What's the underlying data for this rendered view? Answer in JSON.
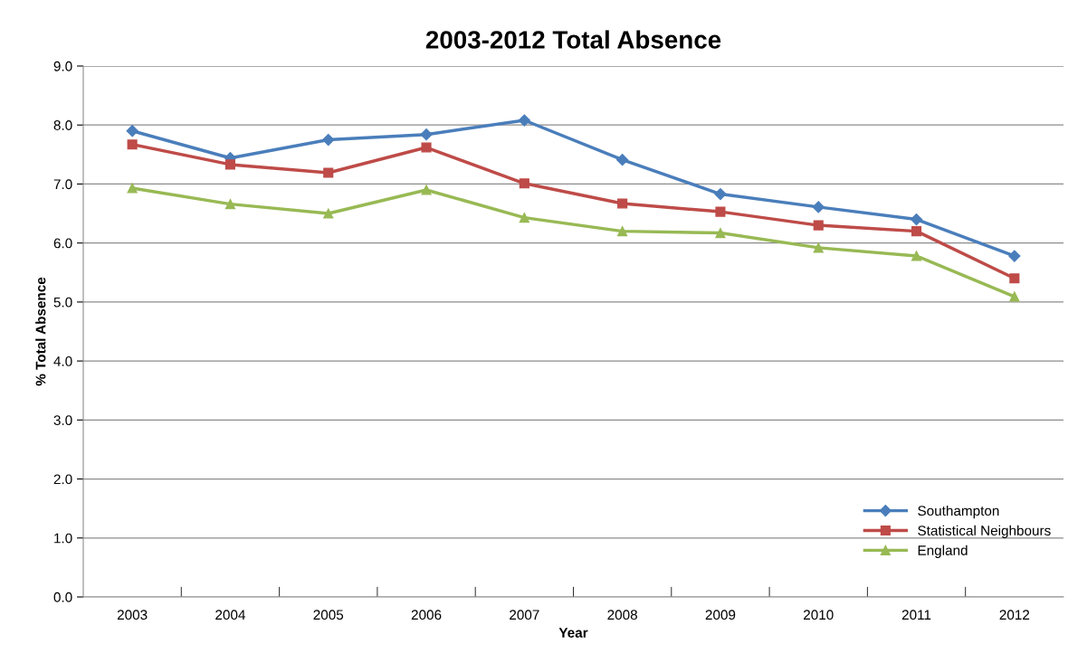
{
  "chart_data": {
    "type": "line",
    "title": "2003-2012 Total Absence",
    "xlabel": "Year",
    "ylabel": "% Total Absence",
    "categories": [
      "2003",
      "2004",
      "2005",
      "2006",
      "2007",
      "2008",
      "2009",
      "2010",
      "2011",
      "2012"
    ],
    "series": [
      {
        "name": "Southampton",
        "color": "#4a7ebb",
        "marker": "diamond",
        "values": [
          7.9,
          7.44,
          7.75,
          7.84,
          8.08,
          7.41,
          6.83,
          6.61,
          6.4,
          5.78
        ]
      },
      {
        "name": "Statistical Neighbours",
        "color": "#be4b48",
        "marker": "square",
        "values": [
          7.67,
          7.33,
          7.19,
          7.62,
          7.01,
          6.67,
          6.53,
          6.3,
          6.2,
          5.4
        ]
      },
      {
        "name": "England",
        "color": "#98b954",
        "marker": "triangle",
        "values": [
          6.93,
          6.66,
          6.5,
          6.9,
          6.43,
          6.2,
          6.17,
          5.92,
          5.78,
          5.09
        ]
      }
    ],
    "ylim": [
      0,
      9
    ],
    "yticks": [
      {
        "value": 0,
        "label": "0.0"
      },
      {
        "value": 1,
        "label": "1.0"
      },
      {
        "value": 2,
        "label": "2.0"
      },
      {
        "value": 3,
        "label": "3.0"
      },
      {
        "value": 4,
        "label": "4.0"
      },
      {
        "value": 5,
        "label": "5.0"
      },
      {
        "value": 6,
        "label": "6.0"
      },
      {
        "value": 7,
        "label": "7.0"
      },
      {
        "value": 8,
        "label": "8.0"
      },
      {
        "value": 9,
        "label": "9.0"
      }
    ],
    "grid": "y",
    "legend": "bottom right",
    "line_style": "solid"
  }
}
